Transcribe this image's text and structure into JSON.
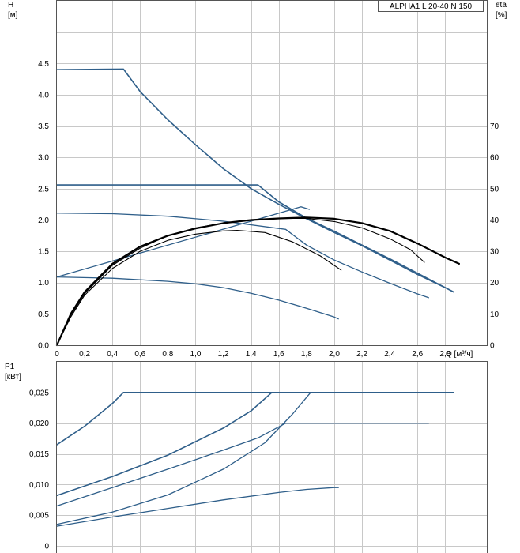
{
  "legend": {
    "label": "ALPHA1 L 20-40 N 150"
  },
  "chart_data": [
    {
      "id": "head",
      "type": "line",
      "title": "",
      "xlabel": "Q [м³/ч]",
      "y_left_label": [
        "H",
        "[м]"
      ],
      "y_right_label": [
        "eta",
        "[%]"
      ],
      "xlim": [
        0,
        3.1
      ],
      "ylim": [
        0,
        5.5
      ],
      "ylim_right": [
        0,
        110
      ],
      "x_ticks": [
        0,
        0.2,
        0.4,
        0.6,
        0.8,
        1.0,
        1.2,
        1.4,
        1.6,
        1.8,
        2.0,
        2.2,
        2.4,
        2.6,
        2.8
      ],
      "x_tick_labels": [
        "0",
        "0,2",
        "0,4",
        "0,6",
        "0,8",
        "1,0",
        "1,2",
        "1,4",
        "1,6",
        "1,8",
        "2,0",
        "2,2",
        "2,4",
        "2,6",
        "2,8"
      ],
      "y_ticks": [
        0,
        0.5,
        1.0,
        1.5,
        2.0,
        2.5,
        3.0,
        3.5,
        4.0,
        4.5
      ],
      "y_tick_labels": [
        "0.0",
        "0.5",
        "1.0",
        "1.5",
        "2.0",
        "2.5",
        "3.0",
        "3.5",
        "4.0",
        "4.5"
      ],
      "y_right_ticks": [
        0,
        10,
        20,
        30,
        40,
        50,
        60,
        70
      ],
      "y_right_tick_labels": [
        "0",
        "10",
        "20",
        "30",
        "40",
        "50",
        "60",
        "70"
      ],
      "grid": true,
      "series": [
        {
          "axis": "left",
          "color": "#2f5f8a",
          "width": 1.6,
          "points": [
            [
              0,
              4.4
            ],
            [
              0.48,
              4.41
            ],
            [
              0.6,
              4.05
            ],
            [
              0.8,
              3.6
            ],
            [
              1.0,
              3.2
            ],
            [
              1.2,
              2.82
            ],
            [
              1.4,
              2.5
            ],
            [
              1.6,
              2.25
            ],
            [
              1.8,
              2.02
            ],
            [
              2.0,
              1.8
            ],
            [
              2.2,
              1.59
            ],
            [
              2.4,
              1.36
            ],
            [
              2.6,
              1.13
            ],
            [
              2.8,
              0.92
            ],
            [
              2.86,
              0.85
            ]
          ]
        },
        {
          "axis": "left",
          "color": "#2f5f8a",
          "width": 1.6,
          "points": [
            [
              0,
              2.56
            ],
            [
              1.45,
              2.56
            ],
            [
              1.6,
              2.29
            ],
            [
              1.8,
              2.03
            ],
            [
              2.0,
              1.82
            ],
            [
              2.2,
              1.6
            ],
            [
              2.4,
              1.38
            ],
            [
              2.6,
              1.15
            ],
            [
              2.86,
              0.85
            ]
          ]
        },
        {
          "axis": "left",
          "color": "#2f5f8a",
          "width": 1.3,
          "points": [
            [
              0,
              2.11
            ],
            [
              0.4,
              2.1
            ],
            [
              0.8,
              2.06
            ],
            [
              1.2,
              1.98
            ],
            [
              1.65,
              1.85
            ],
            [
              1.8,
              1.6
            ],
            [
              2.0,
              1.36
            ],
            [
              2.2,
              1.17
            ],
            [
              2.4,
              0.99
            ],
            [
              2.6,
              0.82
            ],
            [
              2.68,
              0.76
            ]
          ]
        },
        {
          "axis": "left",
          "color": "#2f5f8a",
          "width": 1.3,
          "points": [
            [
              0,
              1.09
            ],
            [
              0.4,
              1.07
            ],
            [
              0.8,
              1.02
            ],
            [
              1.0,
              0.98
            ],
            [
              1.2,
              0.92
            ],
            [
              1.4,
              0.83
            ],
            [
              1.6,
              0.72
            ],
            [
              1.8,
              0.59
            ],
            [
              2.0,
              0.45
            ],
            [
              2.03,
              0.42
            ]
          ]
        },
        {
          "axis": "left",
          "color": "#2f5f8a",
          "width": 1.3,
          "points": [
            [
              0,
              1.09
            ],
            [
              1.76,
              2.21
            ],
            [
              1.82,
              2.17
            ]
          ]
        },
        {
          "axis": "right",
          "color": "#000000",
          "width": 2.2,
          "points": [
            [
              0,
              0
            ],
            [
              0.1,
              10
            ],
            [
              0.2,
              17
            ],
            [
              0.4,
              26
            ],
            [
              0.6,
              31.5
            ],
            [
              0.8,
              35
            ],
            [
              1.0,
              37.3
            ],
            [
              1.2,
              39
            ],
            [
              1.4,
              40
            ],
            [
              1.6,
              40.5
            ],
            [
              1.8,
              40.8
            ],
            [
              2.0,
              40.4
            ],
            [
              2.2,
              39
            ],
            [
              2.4,
              36.5
            ],
            [
              2.6,
              32.5
            ],
            [
              2.8,
              28
            ],
            [
              2.9,
              26
            ]
          ]
        },
        {
          "axis": "right",
          "color": "#000000",
          "width": 1.1,
          "points": [
            [
              0,
              0
            ],
            [
              0.1,
              9.5
            ],
            [
              0.2,
              16.5
            ],
            [
              0.4,
              25.5
            ],
            [
              0.6,
              31
            ],
            [
              0.8,
              35
            ],
            [
              1.0,
              37.5
            ],
            [
              1.2,
              39
            ],
            [
              1.4,
              40
            ],
            [
              1.6,
              40.5
            ],
            [
              1.8,
              40.5
            ],
            [
              2.0,
              39.5
            ],
            [
              2.2,
              37.5
            ],
            [
              2.4,
              34
            ],
            [
              2.55,
              30.5
            ],
            [
              2.65,
              26.5
            ]
          ]
        },
        {
          "axis": "right",
          "color": "#000000",
          "width": 1.1,
          "points": [
            [
              0,
              0
            ],
            [
              0.1,
              9
            ],
            [
              0.2,
              16
            ],
            [
              0.4,
              24.5
            ],
            [
              0.6,
              30
            ],
            [
              0.8,
              33.5
            ],
            [
              1.0,
              35.5
            ],
            [
              1.2,
              36.5
            ],
            [
              1.3,
              36.7
            ],
            [
              1.5,
              36
            ],
            [
              1.7,
              33
            ],
            [
              1.9,
              28.5
            ],
            [
              2.05,
              24
            ]
          ]
        }
      ]
    },
    {
      "id": "power",
      "type": "line",
      "title": "",
      "xlabel": "",
      "y_left_label": [
        "P1",
        "[кВт]"
      ],
      "xlim": [
        0,
        3.1
      ],
      "ylim": [
        0,
        0.03
      ],
      "y_ticks": [
        0,
        0.005,
        0.01,
        0.015,
        0.02,
        0.025
      ],
      "y_tick_labels": [
        "0",
        "0,005",
        "0,010",
        "0,015",
        "0,020",
        "0,025"
      ],
      "grid": true,
      "series": [
        {
          "color": "#2f5f8a",
          "width": 1.6,
          "points": [
            [
              0,
              0.0165
            ],
            [
              0.2,
              0.0195
            ],
            [
              0.4,
              0.0232
            ],
            [
              0.48,
              0.025
            ],
            [
              2.86,
              0.025
            ]
          ]
        },
        {
          "color": "#2f5f8a",
          "width": 1.6,
          "points": [
            [
              0,
              0.0082
            ],
            [
              0.4,
              0.0113
            ],
            [
              0.8,
              0.0148
            ],
            [
              1.2,
              0.0192
            ],
            [
              1.4,
              0.022
            ],
            [
              1.55,
              0.025
            ],
            [
              2.86,
              0.025
            ]
          ]
        },
        {
          "color": "#2f5f8a",
          "width": 1.3,
          "points": [
            [
              0,
              0.0035
            ],
            [
              0.4,
              0.0055
            ],
            [
              0.8,
              0.0083
            ],
            [
              1.2,
              0.0125
            ],
            [
              1.5,
              0.0168
            ],
            [
              1.7,
              0.0215
            ],
            [
              1.83,
              0.025
            ],
            [
              2.86,
              0.025
            ]
          ]
        },
        {
          "color": "#2f5f8a",
          "width": 1.3,
          "points": [
            [
              0,
              0.0065
            ],
            [
              0.4,
              0.0095
            ],
            [
              0.8,
              0.0125
            ],
            [
              1.2,
              0.0156
            ],
            [
              1.45,
              0.0176
            ],
            [
              1.65,
              0.02
            ],
            [
              2.68,
              0.02
            ]
          ]
        },
        {
          "color": "#2f5f8a",
          "width": 1.3,
          "points": [
            [
              0,
              0.0032
            ],
            [
              0.4,
              0.0047
            ],
            [
              0.8,
              0.0061
            ],
            [
              1.2,
              0.0075
            ],
            [
              1.6,
              0.0087
            ],
            [
              1.8,
              0.0092
            ],
            [
              2.0,
              0.0095
            ],
            [
              2.03,
              0.0095
            ]
          ]
        }
      ]
    }
  ]
}
